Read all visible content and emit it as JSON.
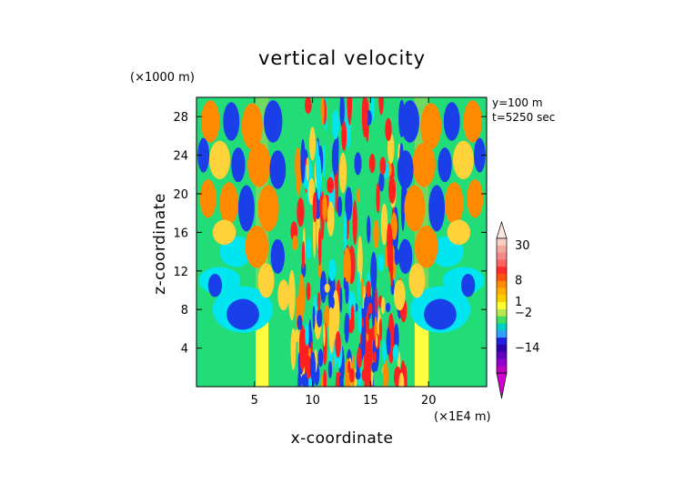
{
  "chart_data": {
    "type": "heatmap",
    "title": "vertical velocity",
    "xlabel": "x-coordinate",
    "ylabel": "z-coordinate",
    "x_unit": "(×1E4 m)",
    "y_unit": "(×1000 m)",
    "annotations": [
      "y=100  m",
      "t=5250  sec"
    ],
    "xlim": [
      0,
      25
    ],
    "ylim": [
      0,
      30
    ],
    "x_ticks": [
      5,
      10,
      15,
      20
    ],
    "y_ticks": [
      4,
      8,
      12,
      16,
      20,
      24,
      28
    ],
    "colorbar": {
      "labels": [
        30,
        8,
        1,
        -2,
        -14
      ],
      "bands": [
        {
          "color": "#f9d0c8"
        },
        {
          "color": "#f5aaa0"
        },
        {
          "color": "#f28a8a"
        },
        {
          "color": "#ff6060"
        },
        {
          "color": "#ff2a2a"
        },
        {
          "color": "#ff5010"
        },
        {
          "color": "#ff8c00"
        },
        {
          "color": "#ffb000"
        },
        {
          "color": "#ffd000"
        },
        {
          "color": "#ffff30"
        },
        {
          "color": "#b8e850"
        },
        {
          "color": "#40e060"
        },
        {
          "color": "#00d0c8"
        },
        {
          "color": "#30a0ff"
        },
        {
          "color": "#2020e0"
        },
        {
          "color": "#3000b0"
        },
        {
          "color": "#6000c0"
        },
        {
          "color": "#9000d0"
        },
        {
          "color": "#c000c0"
        }
      ],
      "top_arrow_color": "#fbe6e0",
      "bottom_arrow_color": "#d000d0"
    },
    "palette": {
      "background": "#22dd77",
      "weak_down": "#00e5f0",
      "moderate_down": "#1a3ee8",
      "weak_up": "#ffd23a",
      "moderate_up": "#ff8a00",
      "strong_up": "#ff2020",
      "source_column": "#ffff40"
    }
  }
}
